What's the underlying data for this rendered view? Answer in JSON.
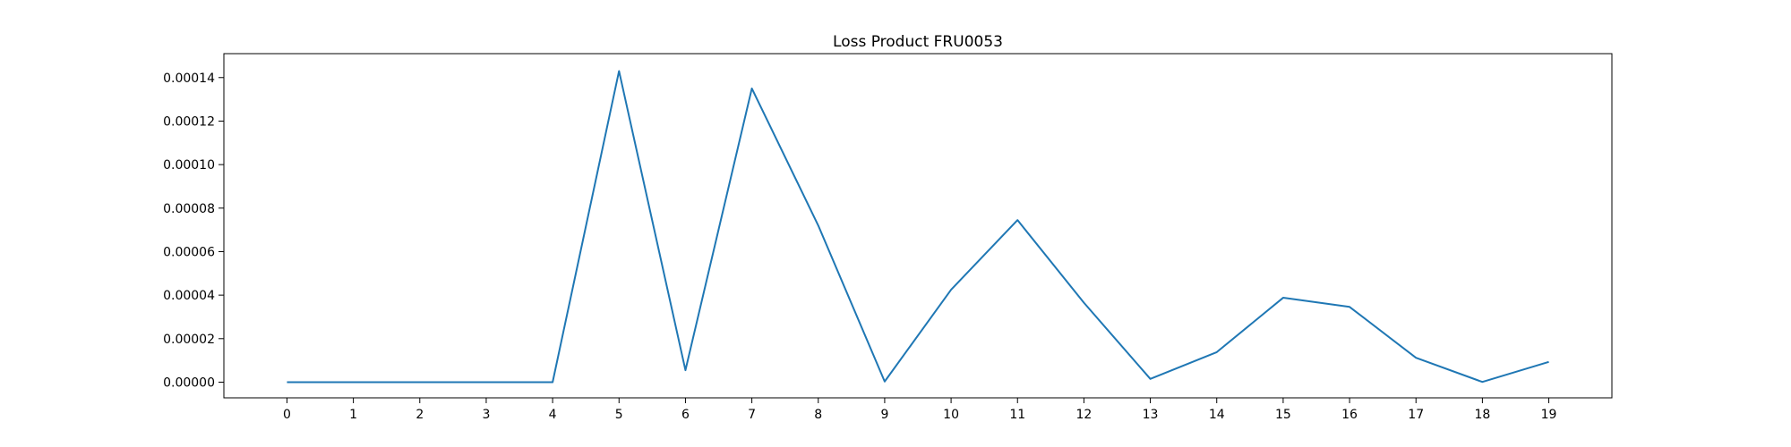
{
  "chart_data": {
    "type": "line",
    "title": "Loss Product FRU0053",
    "xlabel": "",
    "ylabel": "",
    "x": [
      0,
      1,
      2,
      3,
      4,
      5,
      6,
      7,
      8,
      9,
      10,
      11,
      12,
      13,
      14,
      15,
      16,
      17,
      18,
      19
    ],
    "series": [
      {
        "values": [
          0.0,
          0.0,
          0.0,
          0.0,
          0.0,
          0.000143,
          5.5e-06,
          0.000135,
          7.2e-05,
          3e-07,
          4.25e-05,
          7.45e-05,
          3.65e-05,
          1.5e-06,
          1.38e-05,
          3.88e-05,
          3.46e-05,
          1.12e-05,
          1e-07,
          9.3e-06
        ],
        "color": "#1f77b4"
      }
    ],
    "xticks": [
      "0",
      "1",
      "2",
      "3",
      "4",
      "5",
      "6",
      "7",
      "8",
      "9",
      "10",
      "11",
      "12",
      "13",
      "14",
      "15",
      "16",
      "17",
      "18",
      "19"
    ],
    "yticks": [
      "0.00000",
      "0.00002",
      "0.00004",
      "0.00006",
      "0.00008",
      "0.00010",
      "0.00012",
      "0.00014"
    ],
    "ytick_values": [
      0,
      2e-05,
      4e-05,
      6e-05,
      8e-05,
      0.0001,
      0.00012,
      0.00014
    ],
    "xlim": [
      -0.95,
      19.95
    ],
    "ylim": [
      -7.2e-06,
      0.000151
    ],
    "grid": false,
    "legend": "none"
  }
}
